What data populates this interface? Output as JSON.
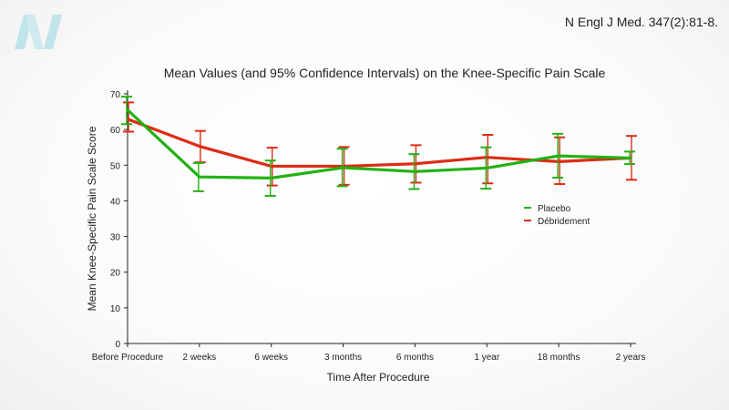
{
  "logo": {
    "icon": "brand-n-logo-icon",
    "color": "#bfe4ea"
  },
  "citation": "N Engl J Med. 347(2):81-8.",
  "chart_data": {
    "type": "line",
    "title": "Mean Values (and 95% Confidence Intervals) on the Knee-Specific Pain Scale",
    "xlabel": "Time After Procedure",
    "ylabel": "Mean Knee-Specific Pain Scale Score",
    "categories": [
      "Before Procedure",
      "2 weeks",
      "6 weeks",
      "3 months",
      "6 months",
      "1 year",
      "18 months",
      "2 years"
    ],
    "ylim": [
      0,
      70
    ],
    "yticks": [
      0,
      10,
      20,
      30,
      40,
      50,
      60,
      70
    ],
    "grid": false,
    "legend_position": "right",
    "series": [
      {
        "name": "Placebo",
        "color": "#22b214",
        "values": [
          65.5,
          46.7,
          46.4,
          49.3,
          48.2,
          49.2,
          52.6,
          52.0
        ],
        "ci_low": [
          61.5,
          42.7,
          41.4,
          44.1,
          43.3,
          43.4,
          46.5,
          50.3
        ],
        "ci_high": [
          69.2,
          50.6,
          51.3,
          54.6,
          53.1,
          55.0,
          58.8,
          53.8
        ]
      },
      {
        "name": "Débridement",
        "color": "#dd2c15",
        "values": [
          62.9,
          55.3,
          49.7,
          49.7,
          50.4,
          52.2,
          51.0,
          52.0
        ],
        "ci_low": [
          59.4,
          50.8,
          44.3,
          44.5,
          45.1,
          44.9,
          44.7,
          45.9
        ],
        "ci_high": [
          67.6,
          59.6,
          54.9,
          55.1,
          55.6,
          58.5,
          57.8,
          58.2
        ]
      }
    ]
  }
}
